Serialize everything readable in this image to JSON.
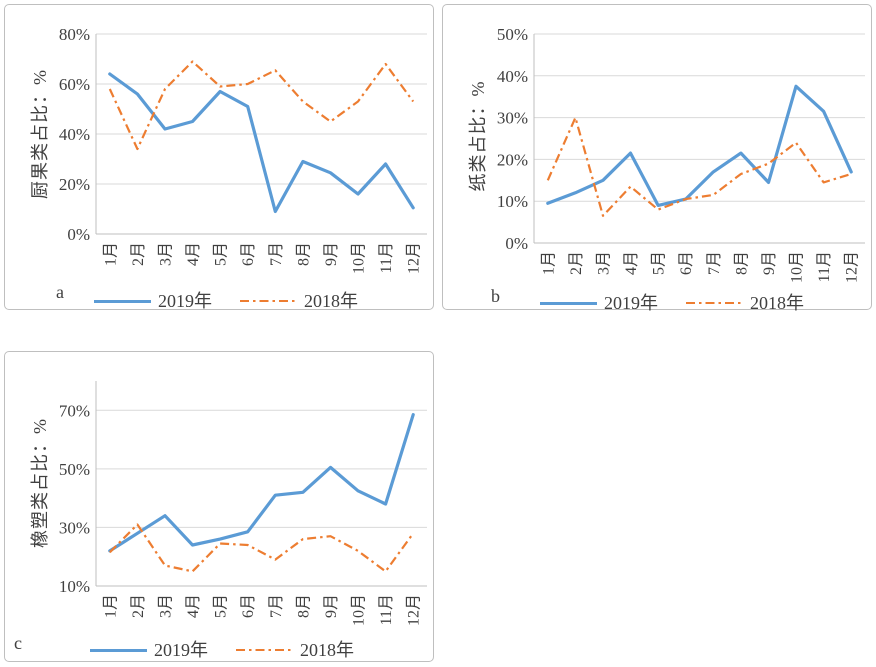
{
  "page": {
    "background": "#ffffff"
  },
  "colors": {
    "series_2019": "#5B9BD5",
    "series_2018": "#ED7D31",
    "gridline": "#D9D9D9",
    "axis_line": "#BFBFBF",
    "text": "#404040",
    "panel_border": "#BFBFBF"
  },
  "chart_data": [
    {
      "panel_label": "a",
      "type": "line",
      "ylabel": "厨果类占比：%",
      "categories": [
        "1月",
        "2月",
        "3月",
        "4月",
        "5月",
        "6月",
        "7月",
        "8月",
        "9月",
        "10月",
        "11月",
        "12月"
      ],
      "ylim": [
        0,
        80
      ],
      "yticks": [
        0,
        20,
        40,
        60,
        80
      ],
      "ytick_labels": [
        "0%",
        "20%",
        "40%",
        "60%",
        "80%"
      ],
      "grid": true,
      "legend_position": "bottom",
      "series": [
        {
          "name": "2019年",
          "style": "solid",
          "color": "#5B9BD5",
          "values": [
            64,
            56,
            42,
            45,
            57,
            51,
            9,
            29,
            24.5,
            16,
            28,
            10.5
          ]
        },
        {
          "name": "2018年",
          "style": "dash-dot",
          "color": "#ED7D31",
          "values": [
            58,
            34,
            58,
            69,
            59,
            60,
            65.5,
            53,
            45,
            53,
            68,
            53
          ]
        }
      ]
    },
    {
      "panel_label": "b",
      "type": "line",
      "ylabel": "纸类占比：%",
      "categories": [
        "1月",
        "2月",
        "3月",
        "4月",
        "5月",
        "6月",
        "7月",
        "8月",
        "9月",
        "10月",
        "11月",
        "12月"
      ],
      "ylim": [
        0,
        50
      ],
      "yticks": [
        0,
        10,
        20,
        30,
        40,
        50
      ],
      "ytick_labels": [
        "0%",
        "10%",
        "20%",
        "30%",
        "40%",
        "50%"
      ],
      "grid": true,
      "legend_position": "bottom",
      "series": [
        {
          "name": "2019年",
          "style": "solid",
          "color": "#5B9BD5",
          "values": [
            9.5,
            12,
            15,
            21.5,
            9,
            10.5,
            17,
            21.5,
            14.5,
            37.5,
            31.5,
            17
          ]
        },
        {
          "name": "2018年",
          "style": "dash-dot",
          "color": "#ED7D31",
          "values": [
            15,
            30,
            6.5,
            13.5,
            8,
            10.5,
            11.5,
            16.5,
            19,
            24,
            14.5,
            16.5
          ]
        }
      ]
    },
    {
      "panel_label": "c",
      "type": "line",
      "ylabel": "橡塑类占比：%",
      "categories": [
        "1月",
        "2月",
        "3月",
        "4月",
        "5月",
        "6月",
        "7月",
        "8月",
        "9月",
        "10月",
        "11月",
        "12月"
      ],
      "ylim": [
        10,
        80
      ],
      "yticks": [
        10,
        30,
        50,
        70
      ],
      "ytick_labels": [
        "10%",
        "30%",
        "50%",
        "70%"
      ],
      "grid": true,
      "legend_position": "bottom",
      "series": [
        {
          "name": "2019年",
          "style": "solid",
          "color": "#5B9BD5",
          "values": [
            22,
            28,
            34,
            24,
            26,
            28.5,
            41,
            42,
            50.5,
            42.5,
            38,
            68.5
          ]
        },
        {
          "name": "2018年",
          "style": "dash-dot",
          "color": "#ED7D31",
          "values": [
            21.5,
            31,
            17,
            15,
            24.5,
            24,
            19,
            26,
            27,
            22,
            15,
            28
          ]
        }
      ]
    }
  ]
}
